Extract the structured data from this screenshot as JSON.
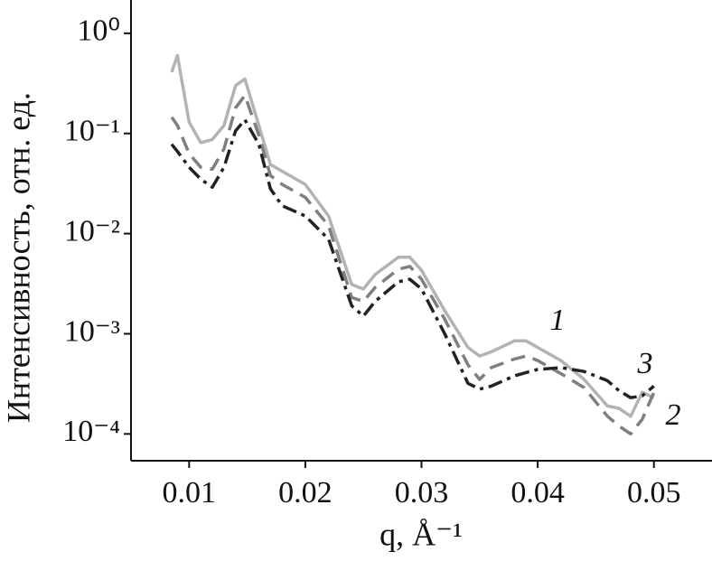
{
  "chart_data": {
    "type": "line",
    "xlabel": "q, Å⁻¹",
    "ylabel": "Интенсивность, отн. ед.",
    "log_y": true,
    "xlim": [
      0.005,
      0.055
    ],
    "ylim": [
      5.4e-05,
      2.15
    ],
    "xticks": [
      0.01,
      0.02,
      0.03,
      0.04,
      0.05
    ],
    "yticks": [
      {
        "value": 1,
        "label": "10⁰"
      },
      {
        "value": 0.1,
        "label": "10⁻¹"
      },
      {
        "value": 0.01,
        "label": "10⁻²"
      },
      {
        "value": 0.001,
        "label": "10⁻³"
      },
      {
        "value": 0.0001,
        "label": "10⁻⁴"
      }
    ],
    "x": [
      0.0085,
      0.009,
      0.01,
      0.011,
      0.012,
      0.013,
      0.014,
      0.0148,
      0.016,
      0.017,
      0.018,
      0.02,
      0.022,
      0.024,
      0.025,
      0.026,
      0.028,
      0.029,
      0.03,
      0.032,
      0.034,
      0.035,
      0.036,
      0.038,
      0.039,
      0.04,
      0.042,
      0.044,
      0.046,
      0.047,
      0.048,
      0.049,
      0.05
    ],
    "series": [
      {
        "name": "1",
        "color": "#b3b3b3",
        "dash": "solid",
        "values": [
          0.41,
          0.6,
          0.13,
          0.081,
          0.087,
          0.12,
          0.3,
          0.35,
          0.12,
          0.049,
          0.042,
          0.031,
          0.015,
          0.0031,
          0.0028,
          0.0039,
          0.0058,
          0.0058,
          0.0043,
          0.0017,
          0.00073,
          0.0006,
          0.00066,
          0.00085,
          0.00085,
          0.00073,
          0.00054,
          0.00035,
          0.00019,
          0.00018,
          0.00015,
          0.00026,
          0.00023
        ]
      },
      {
        "name": "2",
        "color": "#7f7f7f",
        "dash": "dashed",
        "values": [
          0.145,
          0.12,
          0.063,
          0.046,
          0.044,
          0.07,
          0.18,
          0.24,
          0.096,
          0.038,
          0.031,
          0.023,
          0.012,
          0.0023,
          0.0021,
          0.0029,
          0.0044,
          0.0047,
          0.0035,
          0.0014,
          0.00049,
          0.00035,
          0.00046,
          0.00056,
          0.0006,
          0.00054,
          0.0004,
          0.00029,
          0.00015,
          0.00012,
          0.0001,
          0.00014,
          0.00026
        ]
      },
      {
        "name": "3",
        "color": "#222222",
        "dash": "dashdot",
        "values": [
          0.078,
          0.066,
          0.046,
          0.035,
          0.029,
          0.046,
          0.106,
          0.137,
          0.078,
          0.028,
          0.019,
          0.015,
          0.0088,
          0.0019,
          0.0015,
          0.0021,
          0.0033,
          0.0035,
          0.0028,
          0.001,
          0.00032,
          0.00028,
          0.0003,
          0.00038,
          0.00041,
          0.00044,
          0.00046,
          0.00042,
          0.00034,
          0.00027,
          0.00023,
          0.00024,
          0.0003
        ]
      }
    ]
  }
}
